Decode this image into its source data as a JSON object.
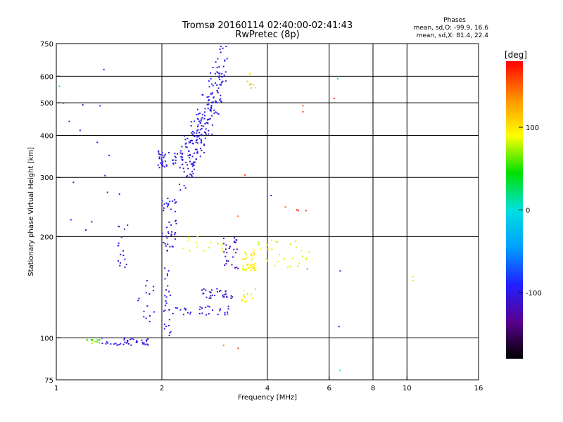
{
  "header": {
    "title_line1": "Tromsø 20160114 02:40:00-02:41:43",
    "title_line2": "RwPretec (8p)"
  },
  "stats": {
    "heading": "Phases",
    "line_o": "mean, sd,O: -99.9, 16.6",
    "line_x": "mean, sd,X:  81.4, 22.4"
  },
  "colorbar": {
    "title": "[deg]",
    "ticks": [
      {
        "value": 100,
        "label": "100"
      },
      {
        "value": 0,
        "label": "0"
      },
      {
        "value": -100,
        "label": "-100"
      }
    ],
    "range": [
      -180,
      180
    ],
    "palette": [
      "#000000",
      "#5a0090",
      "#2020ff",
      "#00a0ff",
      "#00e0e0",
      "#00e000",
      "#ffff00",
      "#ff9000",
      "#ff0000"
    ]
  },
  "chart_data": {
    "type": "scatter",
    "title": "Tromsø 20160114 02:40:00-02:41:43",
    "subtitle": "RwPretec (8p)",
    "xlabel": "Frequency [MHz]",
    "ylabel": "Stationary phase Virtual Height [km]",
    "x_scale": "log",
    "y_scale": "log",
    "xlim": [
      1,
      16
    ],
    "ylim": [
      75,
      750
    ],
    "grid": true,
    "x_ticks": [
      {
        "value": 1,
        "label": "1"
      },
      {
        "value": 2,
        "label": "2"
      },
      {
        "value": 4,
        "label": "4"
      },
      {
        "value": 6,
        "label": "6"
      },
      {
        "value": 8,
        "label": "8"
      },
      {
        "value": 10,
        "label": "10"
      },
      {
        "value": 16,
        "label": "16"
      }
    ],
    "y_ticks": [
      {
        "value": 75,
        "label": "75"
      },
      {
        "value": 100,
        "label": "100"
      },
      {
        "value": 200,
        "label": "200"
      },
      {
        "value": 300,
        "label": "300"
      },
      {
        "value": 400,
        "label": "400"
      },
      {
        "value": 500,
        "label": "500"
      },
      {
        "value": 600,
        "label": "600"
      },
      {
        "value": 750,
        "label": "750"
      }
    ],
    "clusters": [
      {
        "x": [
          2.3,
          3.0
        ],
        "y": [
          340,
          640
        ],
        "phase": -100,
        "n": 220,
        "trend": "ridge",
        "y0": 320,
        "y1": 640
      },
      {
        "x": [
          1.95,
          2.3
        ],
        "y": [
          320,
          360
        ],
        "phase": -100,
        "n": 45
      },
      {
        "x": [
          2.0,
          2.2
        ],
        "y": [
          185,
          260
        ],
        "phase": -100,
        "n": 45
      },
      {
        "x": [
          2.03,
          2.12
        ],
        "y": [
          100,
          190
        ],
        "phase": -100,
        "n": 25
      },
      {
        "x": [
          1.35,
          1.85
        ],
        "y": [
          95,
          100
        ],
        "phase": -105,
        "n": 40
      },
      {
        "x": [
          1.22,
          1.34
        ],
        "y": [
          96,
          99
        ],
        "phase": 60,
        "n": 12
      },
      {
        "x": [
          1.7,
          1.9
        ],
        "y": [
          110,
          150
        ],
        "phase": -100,
        "n": 15
      },
      {
        "x": [
          2.0,
          3.1
        ],
        "y": [
          117,
          125
        ],
        "phase": -100,
        "n": 35
      },
      {
        "x": [
          2.6,
          3.2
        ],
        "y": [
          131,
          140
        ],
        "phase": -110,
        "n": 30
      },
      {
        "x": [
          3.0,
          3.3
        ],
        "y": [
          160,
          200
        ],
        "phase": -115,
        "n": 30
      },
      {
        "x": [
          3.4,
          3.7
        ],
        "y": [
          158,
          180
        ],
        "phase": 95,
        "n": 40
      },
      {
        "x": [
          3.6,
          5.3
        ],
        "y": [
          160,
          195
        ],
        "phase": 85,
        "n": 30
      },
      {
        "x": [
          2.3,
          3.0
        ],
        "y": [
          180,
          200
        ],
        "phase": 90,
        "n": 15
      },
      {
        "x": [
          3.3,
          3.7
        ],
        "y": [
          128,
          140
        ],
        "phase": 90,
        "n": 12
      },
      {
        "x": [
          1.5,
          1.6
        ],
        "y": [
          160,
          270
        ],
        "phase": -100,
        "n": 18
      },
      {
        "x": [
          1.03,
          1.45
        ],
        "y": [
          200,
          640
        ],
        "phase": -100,
        "n": 14
      },
      {
        "x": [
          3.5,
          3.7
        ],
        "y": [
          500,
          620
        ],
        "phase": 110,
        "n": 8
      }
    ],
    "points": [
      {
        "x": 1.02,
        "y": 560,
        "phase": 20
      },
      {
        "x": 6.35,
        "y": 590,
        "phase": 20
      },
      {
        "x": 6.2,
        "y": 515,
        "phase": 170
      },
      {
        "x": 5.05,
        "y": 470,
        "phase": 160
      },
      {
        "x": 5.05,
        "y": 490,
        "phase": 150
      },
      {
        "x": 4.5,
        "y": 245,
        "phase": 150
      },
      {
        "x": 4.85,
        "y": 240,
        "phase": 170
      },
      {
        "x": 4.9,
        "y": 239,
        "phase": 170
      },
      {
        "x": 5.15,
        "y": 239,
        "phase": 170
      },
      {
        "x": 3.45,
        "y": 305,
        "phase": 160
      },
      {
        "x": 3.3,
        "y": 230,
        "phase": 150
      },
      {
        "x": 5.2,
        "y": 160,
        "phase": 20
      },
      {
        "x": 6.45,
        "y": 158,
        "phase": -110
      },
      {
        "x": 6.4,
        "y": 108,
        "phase": -110
      },
      {
        "x": 6.45,
        "y": 80,
        "phase": 10
      },
      {
        "x": 10.4,
        "y": 148,
        "phase": 80
      },
      {
        "x": 10.4,
        "y": 152,
        "phase": 80
      },
      {
        "x": 3.3,
        "y": 93,
        "phase": 160
      },
      {
        "x": 3.0,
        "y": 95,
        "phase": 140
      },
      {
        "x": 4.1,
        "y": 265,
        "phase": -110
      }
    ]
  }
}
